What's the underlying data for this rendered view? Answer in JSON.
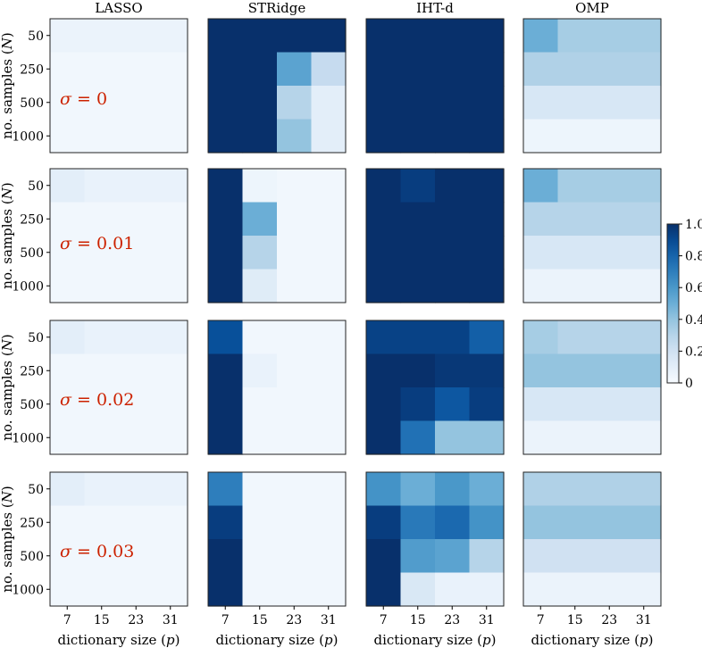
{
  "chart_data": {
    "type": "heatmap",
    "method_titles": [
      "LASSO",
      "STRidge",
      "IHT-d",
      "OMP"
    ],
    "sigma_labels": [
      "σ = 0",
      "σ = 0.01",
      "σ = 0.02",
      "σ = 0.03"
    ],
    "y_label": "no. samples (",
    "y_label_symbol": "N",
    "y_label_end": ")",
    "x_label": "dictionary size (",
    "x_label_symbol": "p",
    "x_label_end": ")",
    "y_ticks": [
      "50",
      "250",
      "500",
      "1000"
    ],
    "x_ticks": [
      "7",
      "15",
      "23",
      "31"
    ],
    "colorbar_ticks": [
      "1.0",
      "0.8",
      "0.6",
      "0.4",
      "0.2",
      "0"
    ],
    "colorbar_range": [
      0,
      1
    ],
    "colormap": "Blues",
    "grid_shape": [
      4,
      4
    ],
    "values": [
      [
        [
          [
            0.06,
            0.06,
            0.06,
            0.06
          ],
          [
            0.03,
            0.03,
            0.03,
            0.03
          ],
          [
            0.03,
            0.03,
            0.03,
            0.03
          ],
          [
            0.03,
            0.03,
            0.03,
            0.03
          ]
        ],
        [
          [
            1,
            1,
            1,
            1
          ],
          [
            1,
            1,
            0.55,
            0.25
          ],
          [
            1,
            1,
            0.3,
            0.1
          ],
          [
            1,
            1,
            0.4,
            0.1
          ]
        ],
        [
          [
            1,
            1,
            1,
            1
          ],
          [
            1,
            1,
            1,
            1
          ],
          [
            1,
            1,
            1,
            1
          ],
          [
            1,
            1,
            1,
            1
          ]
        ],
        [
          [
            0.5,
            0.35,
            0.35,
            0.35
          ],
          [
            0.32,
            0.32,
            0.32,
            0.32
          ],
          [
            0.16,
            0.16,
            0.16,
            0.16
          ],
          [
            0.05,
            0.05,
            0.05,
            0.05
          ]
        ]
      ],
      [
        [
          [
            0.1,
            0.07,
            0.07,
            0.07
          ],
          [
            0.03,
            0.03,
            0.03,
            0.03
          ],
          [
            0.03,
            0.03,
            0.03,
            0.03
          ],
          [
            0.03,
            0.03,
            0.03,
            0.03
          ]
        ],
        [
          [
            1,
            0.05,
            0.03,
            0.03
          ],
          [
            1,
            0.5,
            0.03,
            0.03
          ],
          [
            1,
            0.3,
            0.03,
            0.03
          ],
          [
            1,
            0.12,
            0.03,
            0.03
          ]
        ],
        [
          [
            1,
            0.95,
            1,
            1
          ],
          [
            1,
            1,
            1,
            1
          ],
          [
            1,
            1,
            1,
            1
          ],
          [
            1,
            1,
            1,
            1
          ]
        ],
        [
          [
            0.5,
            0.35,
            0.35,
            0.35
          ],
          [
            0.3,
            0.3,
            0.3,
            0.3
          ],
          [
            0.16,
            0.16,
            0.16,
            0.16
          ],
          [
            0.06,
            0.06,
            0.06,
            0.06
          ]
        ]
      ],
      [
        [
          [
            0.1,
            0.07,
            0.07,
            0.07
          ],
          [
            0.03,
            0.03,
            0.03,
            0.03
          ],
          [
            0.03,
            0.03,
            0.03,
            0.03
          ],
          [
            0.03,
            0.03,
            0.03,
            0.03
          ]
        ],
        [
          [
            0.88,
            0.03,
            0.03,
            0.03
          ],
          [
            1,
            0.07,
            0.03,
            0.03
          ],
          [
            1,
            0.03,
            0.03,
            0.03
          ],
          [
            1,
            0.03,
            0.03,
            0.03
          ]
        ],
        [
          [
            0.93,
            0.93,
            0.93,
            0.82
          ],
          [
            1,
            1,
            0.97,
            0.97
          ],
          [
            1,
            0.95,
            0.85,
            0.95
          ],
          [
            1,
            0.75,
            0.4,
            0.4
          ]
        ],
        [
          [
            0.35,
            0.3,
            0.3,
            0.3
          ],
          [
            0.4,
            0.4,
            0.4,
            0.4
          ],
          [
            0.16,
            0.16,
            0.16,
            0.16
          ],
          [
            0.06,
            0.06,
            0.06,
            0.06
          ]
        ]
      ],
      [
        [
          [
            0.1,
            0.07,
            0.07,
            0.07
          ],
          [
            0.03,
            0.03,
            0.03,
            0.03
          ],
          [
            0.03,
            0.03,
            0.03,
            0.03
          ],
          [
            0.03,
            0.03,
            0.03,
            0.03
          ]
        ],
        [
          [
            0.7,
            0.03,
            0.03,
            0.03
          ],
          [
            0.95,
            0.03,
            0.03,
            0.03
          ],
          [
            1,
            0.03,
            0.03,
            0.03
          ],
          [
            1,
            0.03,
            0.03,
            0.03
          ]
        ],
        [
          [
            0.62,
            0.5,
            0.6,
            0.5
          ],
          [
            0.95,
            0.72,
            0.78,
            0.62
          ],
          [
            1,
            0.58,
            0.55,
            0.3
          ],
          [
            1,
            0.15,
            0.07,
            0.07
          ]
        ],
        [
          [
            0.32,
            0.32,
            0.32,
            0.32
          ],
          [
            0.4,
            0.4,
            0.4,
            0.4
          ],
          [
            0.2,
            0.2,
            0.2,
            0.2
          ],
          [
            0.06,
            0.06,
            0.06,
            0.06
          ]
        ]
      ]
    ]
  }
}
